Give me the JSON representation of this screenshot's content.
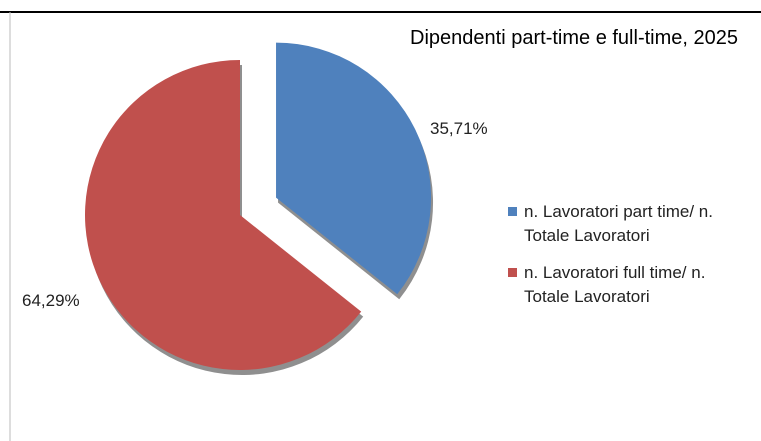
{
  "chart_data": {
    "type": "pie",
    "title": "Dipendenti part-time e full-time, 2025",
    "categories": [
      "n. Lavoratori part time/ n. Totale Lavoratori",
      "n. Lavoratori full time/ n. Totale Lavoratori"
    ],
    "values": [
      35.71,
      64.29
    ],
    "value_labels": [
      "35,71%",
      "64,29%"
    ],
    "colors": [
      "#4f81bd",
      "#c0504d"
    ],
    "legend": "right"
  }
}
